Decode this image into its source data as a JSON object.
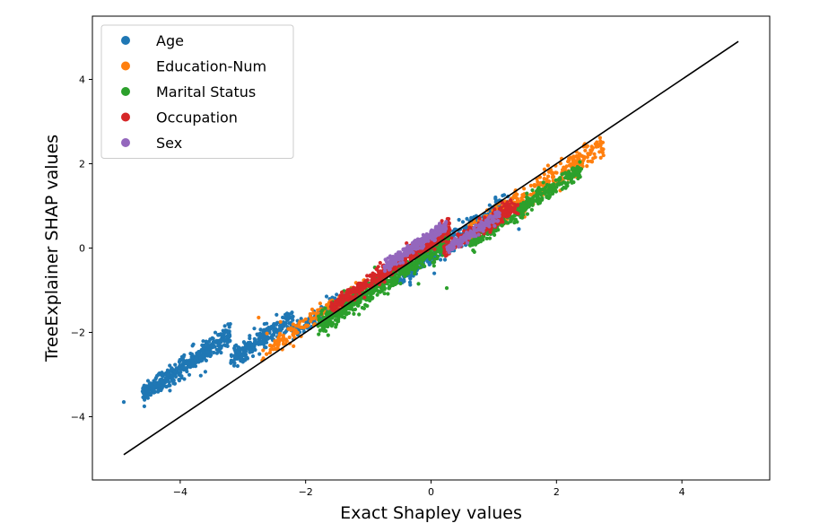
{
  "chart_data": {
    "type": "scatter",
    "title": "",
    "xlabel": "Exact Shapley values",
    "ylabel": "TreeExplainer SHAP values",
    "xlim": [
      -5.4,
      5.4
    ],
    "ylim": [
      -5.5,
      5.5
    ],
    "xticks": [
      -4,
      -2,
      0,
      2,
      4
    ],
    "yticks": [
      -4,
      -2,
      0,
      2,
      4
    ],
    "grid": false,
    "legend_position": "top-left",
    "identity_line": {
      "from": [
        -4.9,
        -4.9
      ],
      "to": [
        4.9,
        4.9
      ],
      "color": "#000000"
    },
    "series": [
      {
        "name": "Age",
        "color": "#1f77b4",
        "clusters": [
          {
            "x_range": [
              -4.6,
              -3.2
            ],
            "offset": 1.15,
            "spread": 0.12,
            "count": 420
          },
          {
            "x_range": [
              -3.2,
              -2.2
            ],
            "offset": 0.55,
            "spread": 0.13,
            "count": 260
          },
          {
            "x_range": [
              -2.2,
              -1.3
            ],
            "offset": 0.2,
            "spread": 0.1,
            "count": 120
          },
          {
            "x_range": [
              -0.6,
              1.3
            ],
            "offset": -0.15,
            "spread": 0.13,
            "count": 330
          }
        ],
        "outliers": [
          [
            -4.9,
            -3.65
          ],
          [
            -4.6,
            -3.4
          ],
          [
            -3.0,
            -2.7
          ],
          [
            -2.6,
            -2.15
          ],
          [
            1.4,
            0.45
          ]
        ]
      },
      {
        "name": "Education-Num",
        "color": "#ff7f0e",
        "clusters": [
          {
            "x_range": [
              -2.7,
              -1.0
            ],
            "offset": 0.18,
            "spread": 0.12,
            "count": 170
          },
          {
            "x_range": [
              0.6,
              2.75
            ],
            "offset": -0.28,
            "spread": 0.15,
            "count": 330
          }
        ],
        "outliers": [
          [
            -2.75,
            -1.65
          ],
          [
            -2.4,
            -1.75
          ]
        ]
      },
      {
        "name": "Marital Status",
        "color": "#2ca02c",
        "clusters": [
          {
            "x_range": [
              -1.8,
              0.3
            ],
            "offset": -0.05,
            "spread": 0.13,
            "count": 650
          },
          {
            "x_range": [
              0.6,
              2.4
            ],
            "offset": -0.52,
            "spread": 0.1,
            "count": 360
          }
        ],
        "outliers": [
          [
            -0.2,
            -0.85
          ],
          [
            0.25,
            -0.95
          ]
        ]
      },
      {
        "name": "Occupation",
        "color": "#d62728",
        "clusters": [
          {
            "x_range": [
              -1.6,
              0.3
            ],
            "offset": 0.18,
            "spread": 0.09,
            "count": 460
          },
          {
            "x_range": [
              0.2,
              1.3
            ],
            "offset": -0.28,
            "spread": 0.08,
            "count": 220
          },
          {
            "x_range": [
              0.8,
              1.4
            ],
            "offset": -0.42,
            "spread": 0.06,
            "count": 80
          }
        ],
        "outliers": []
      },
      {
        "name": "Sex",
        "color": "#9467bd",
        "clusters": [
          {
            "x_range": [
              -0.75,
              0.25
            ],
            "offset": 0.3,
            "spread": 0.07,
            "count": 260
          },
          {
            "x_range": [
              0.25,
              1.1
            ],
            "offset": -0.3,
            "spread": 0.06,
            "count": 160
          }
        ],
        "outliers": []
      }
    ]
  }
}
